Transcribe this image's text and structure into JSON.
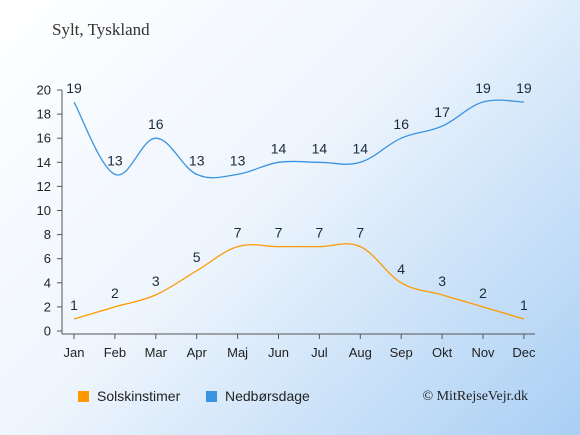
{
  "title": "Sylt, Tyskland",
  "copyright": "© MitRejseVejr.dk",
  "chart_data": {
    "type": "line",
    "categories": [
      "Jan",
      "Feb",
      "Mar",
      "Apr",
      "Maj",
      "Jun",
      "Jul",
      "Aug",
      "Sep",
      "Okt",
      "Nov",
      "Dec"
    ],
    "series": [
      {
        "name": "Solskinstimer",
        "color": "#ff9900",
        "values": [
          1,
          2,
          3,
          5,
          7,
          7,
          7,
          7,
          4,
          3,
          2,
          1
        ]
      },
      {
        "name": "Nedbørsdage",
        "color": "#3a93e0",
        "values": [
          19,
          13,
          16,
          13,
          13,
          14,
          14,
          14,
          16,
          17,
          19,
          19
        ]
      }
    ],
    "ylim": [
      0,
      20
    ],
    "yticks": [
      0,
      2,
      4,
      6,
      8,
      10,
      12,
      14,
      16,
      18,
      20
    ],
    "grid": false,
    "legend_position": "bottom"
  }
}
